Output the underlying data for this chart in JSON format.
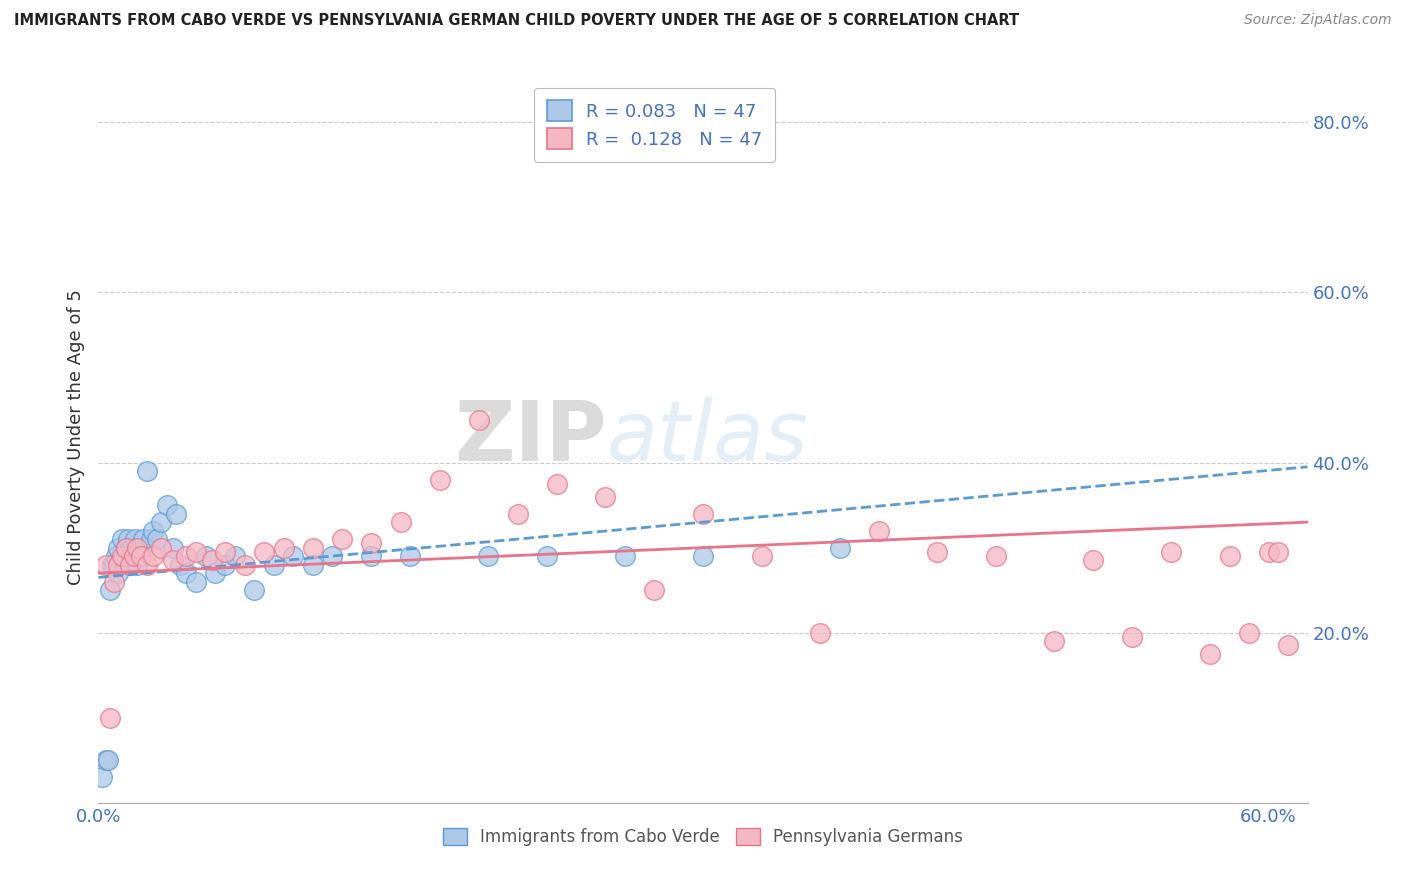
{
  "title": "IMMIGRANTS FROM CABO VERDE VS PENNSYLVANIA GERMAN CHILD POVERTY UNDER THE AGE OF 5 CORRELATION CHART",
  "source": "Source: ZipAtlas.com",
  "ylabel": "Child Poverty Under the Age of 5",
  "xlim": [
    0.0,
    0.62
  ],
  "ylim": [
    0.0,
    0.86
  ],
  "grid_color": "#cccccc",
  "background_color": "#ffffff",
  "cabo_verde_color": "#adc8e8",
  "cabo_verde_edge": "#5b9bd5",
  "penn_german_color": "#f4b8c4",
  "penn_german_edge": "#e8748a",
  "cabo_verde_R": "0.083",
  "cabo_verde_N": "47",
  "penn_german_R": "0.128",
  "penn_german_N": "47",
  "watermark_zip": "ZIP",
  "watermark_atlas": "atlas",
  "cabo_verde_scatter_x": [
    0.002,
    0.004,
    0.005,
    0.006,
    0.007,
    0.008,
    0.009,
    0.01,
    0.01,
    0.012,
    0.013,
    0.014,
    0.015,
    0.016,
    0.017,
    0.018,
    0.019,
    0.02,
    0.022,
    0.023,
    0.025,
    0.027,
    0.028,
    0.03,
    0.032,
    0.035,
    0.038,
    0.04,
    0.042,
    0.045,
    0.05,
    0.055,
    0.06,
    0.065,
    0.07,
    0.08,
    0.09,
    0.1,
    0.11,
    0.12,
    0.14,
    0.16,
    0.2,
    0.23,
    0.27,
    0.31,
    0.38
  ],
  "cabo_verde_scatter_y": [
    0.03,
    0.05,
    0.05,
    0.25,
    0.28,
    0.28,
    0.29,
    0.27,
    0.3,
    0.31,
    0.29,
    0.3,
    0.31,
    0.28,
    0.3,
    0.29,
    0.31,
    0.28,
    0.3,
    0.31,
    0.39,
    0.31,
    0.32,
    0.31,
    0.33,
    0.35,
    0.3,
    0.34,
    0.28,
    0.27,
    0.26,
    0.29,
    0.27,
    0.28,
    0.29,
    0.25,
    0.28,
    0.29,
    0.28,
    0.29,
    0.29,
    0.29,
    0.29,
    0.29,
    0.29,
    0.29,
    0.3
  ],
  "penn_german_scatter_x": [
    0.004,
    0.006,
    0.008,
    0.01,
    0.012,
    0.014,
    0.016,
    0.018,
    0.02,
    0.022,
    0.025,
    0.028,
    0.032,
    0.038,
    0.045,
    0.05,
    0.058,
    0.065,
    0.075,
    0.085,
    0.095,
    0.11,
    0.125,
    0.14,
    0.155,
    0.175,
    0.195,
    0.215,
    0.235,
    0.26,
    0.285,
    0.31,
    0.34,
    0.37,
    0.4,
    0.43,
    0.46,
    0.49,
    0.51,
    0.53,
    0.55,
    0.57,
    0.58,
    0.59,
    0.6,
    0.605,
    0.61
  ],
  "penn_german_scatter_y": [
    0.28,
    0.1,
    0.26,
    0.28,
    0.29,
    0.3,
    0.28,
    0.29,
    0.3,
    0.29,
    0.28,
    0.29,
    0.3,
    0.285,
    0.29,
    0.295,
    0.285,
    0.295,
    0.28,
    0.295,
    0.3,
    0.3,
    0.31,
    0.305,
    0.33,
    0.38,
    0.45,
    0.34,
    0.375,
    0.36,
    0.25,
    0.34,
    0.29,
    0.2,
    0.32,
    0.295,
    0.29,
    0.19,
    0.285,
    0.195,
    0.295,
    0.175,
    0.29,
    0.2,
    0.295,
    0.295,
    0.185
  ],
  "cabo_trend_start_y": 0.265,
  "cabo_trend_end_y": 0.395,
  "penn_trend_start_y": 0.27,
  "penn_trend_end_y": 0.33
}
